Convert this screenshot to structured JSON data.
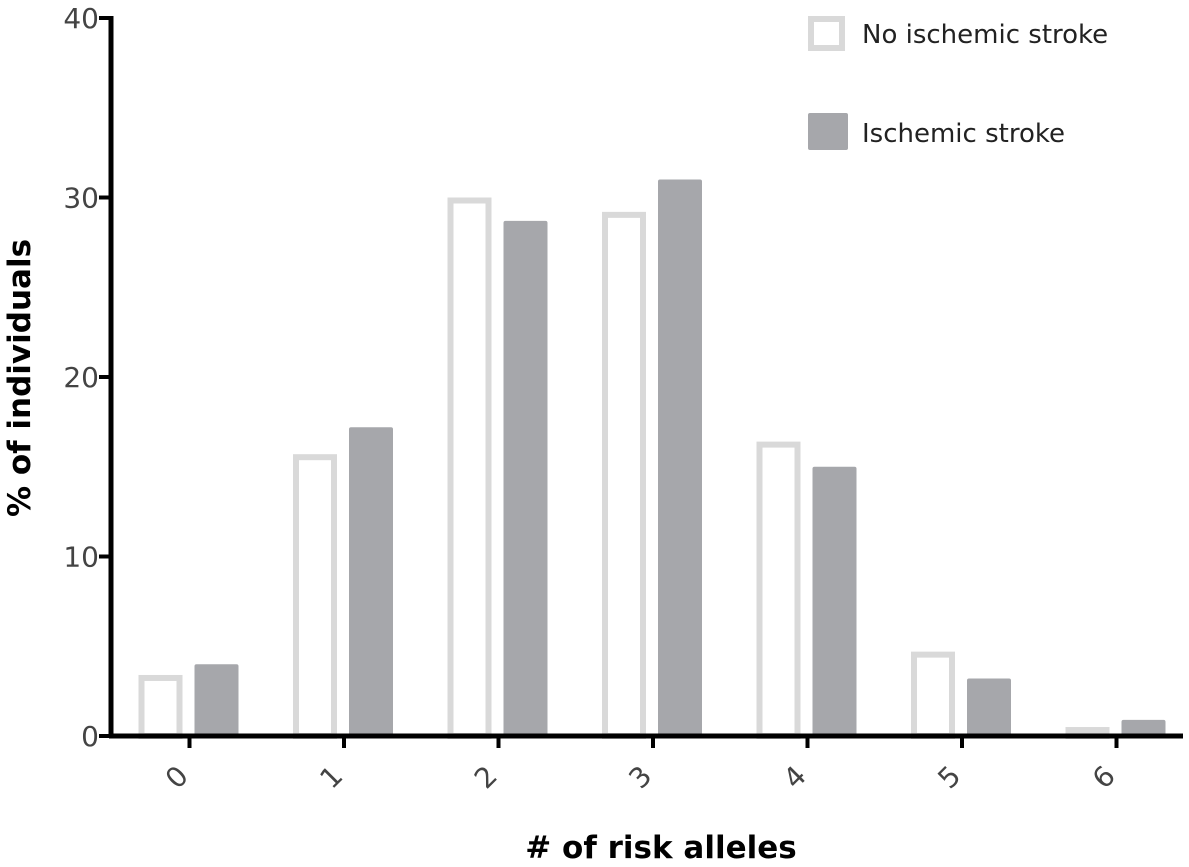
{
  "chart_data": {
    "type": "bar",
    "title": "",
    "xlabel": "# of risk alleles",
    "ylabel": "% of individuals",
    "categories": [
      "0",
      "1",
      "2",
      "3",
      "4",
      "5",
      "6"
    ],
    "ylim": [
      0,
      40
    ],
    "yticks": [
      "0",
      "10",
      "20",
      "30",
      "40"
    ],
    "grid": false,
    "legend_position": "top-right",
    "series": [
      {
        "name": "No ischemic stroke",
        "style": "outline",
        "color": "#d9d9d9",
        "values": [
          3.4,
          15.7,
          30.0,
          29.2,
          16.4,
          4.7,
          0.5
        ]
      },
      {
        "name": "Ischemic stroke",
        "style": "filled",
        "color": "#a6a7ab",
        "values": [
          4.0,
          17.2,
          28.7,
          31.0,
          15.0,
          3.2,
          0.9
        ]
      }
    ]
  }
}
